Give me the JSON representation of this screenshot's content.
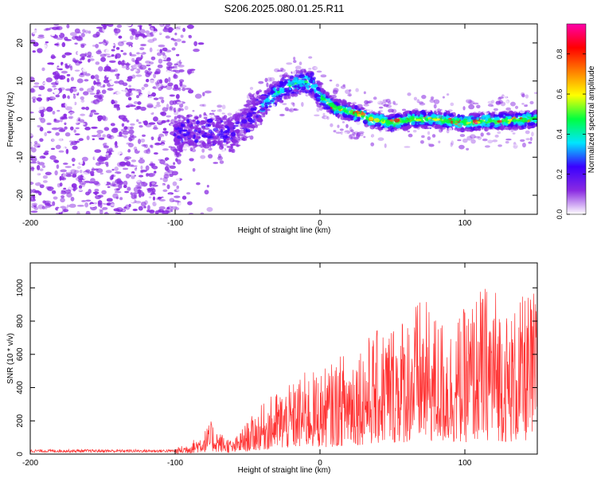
{
  "title": "S206.2025.080.01.25.R11",
  "chart_data": [
    {
      "type": "heatmap",
      "xlabel": "Height of straight line (km)",
      "ylabel": "Frequency (Hz)",
      "xlim": [
        -200,
        150
      ],
      "ylim": [
        -25,
        25
      ],
      "x_ticks": [
        -200,
        -100,
        0,
        100
      ],
      "y_ticks": [
        -20,
        -10,
        0,
        10,
        20
      ],
      "colorbar": {
        "label": "Normalized spectral amplitude",
        "range": [
          0,
          0.95
        ],
        "ticks": [
          0.0,
          0.2,
          0.4,
          0.6,
          0.8
        ],
        "colors": [
          "#ffffff",
          "#8a2be2",
          "#3a00ff",
          "#00e5ff",
          "#00ff40",
          "#ffff00",
          "#ff7f00",
          "#ff0000",
          "#ff00aa"
        ]
      },
      "ridge": {
        "x": [
          -100,
          -80,
          -60,
          -45,
          -30,
          -20,
          -12,
          -5,
          0,
          10,
          20,
          35,
          50,
          65,
          80,
          100,
          120,
          150
        ],
        "y": [
          -4,
          -3,
          -4,
          2,
          7,
          9,
          10,
          9,
          6,
          3,
          2,
          0,
          -1,
          0,
          0,
          -1,
          -0.5,
          0
        ]
      }
    },
    {
      "type": "line",
      "xlabel": "Height of straight line (km)",
      "ylabel": "SNR (10 * v/v)",
      "xlim": [
        -200,
        150
      ],
      "ylim": [
        0,
        1150
      ],
      "x_ticks": [
        -200,
        -100,
        0,
        100
      ],
      "y_ticks": [
        0,
        200,
        400,
        600,
        800,
        1000
      ],
      "color": "#ff3333",
      "envelope": {
        "x": [
          -200,
          -120,
          -100,
          -90,
          -80,
          -75,
          -70,
          -60,
          -50,
          -40,
          -30,
          -20,
          -10,
          0,
          10,
          20,
          30,
          40,
          50,
          60,
          70,
          80,
          90,
          100,
          110,
          120,
          130,
          140,
          150
        ],
        "y": [
          30,
          30,
          35,
          70,
          140,
          200,
          140,
          80,
          200,
          300,
          380,
          420,
          500,
          500,
          560,
          650,
          700,
          750,
          820,
          870,
          950,
          850,
          800,
          880,
          1000,
          1050,
          850,
          950,
          1000
        ]
      }
    }
  ]
}
